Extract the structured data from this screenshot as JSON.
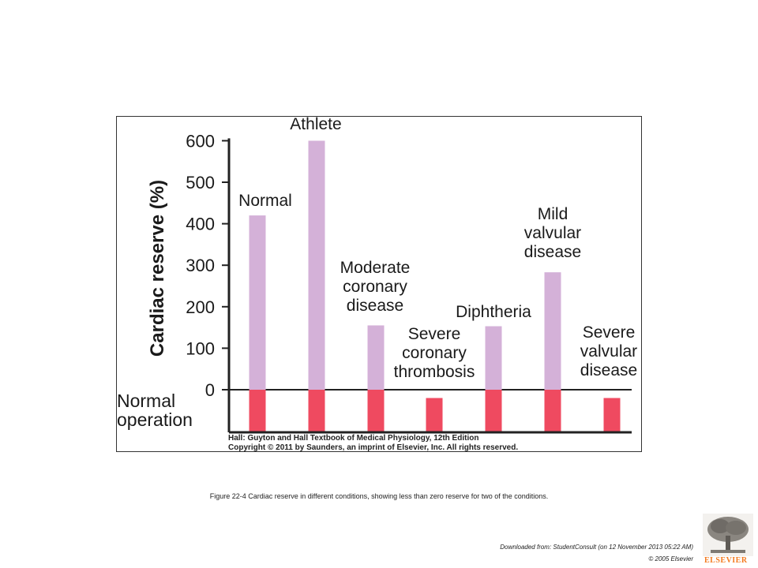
{
  "chart_data": {
    "type": "bar",
    "ylabel": "Cardiac reserve (%)",
    "ylim": [
      0,
      600
    ],
    "yticks": [
      0,
      100,
      200,
      300,
      400,
      500,
      600
    ],
    "categories": [
      "Normal",
      "Athlete",
      "Moderate\ncoronary\ndisease",
      "Severe\ncoronary\nthrombosis",
      "Diphtheria",
      "Mild\nvalvular\ndisease",
      "Severe\nvalvular\ndisease"
    ],
    "values": [
      420,
      600,
      155,
      -20,
      153,
      283,
      -20
    ],
    "baseline_label": "Normal\noperation",
    "colors": {
      "reserve": "#d4b1d8",
      "baseline": "#ef4a60"
    }
  },
  "credit": {
    "line1": "Hall: Guyton and Hall Textbook of Medical Physiology, 12th Edition",
    "line2": "Copyright © 2011 by Saunders, an imprint of Elsevier, Inc. All rights reserved."
  },
  "caption": "Figure 22-4 Cardiac reserve in different conditions, showing less than zero reserve for two of the conditions.",
  "footer": {
    "download_note": "Downloaded from: StudentConsult (on 12 November 2013 05:22 AM)",
    "copyright": "© 2005 Elsevier",
    "logo_text": "ELSEVIER"
  }
}
